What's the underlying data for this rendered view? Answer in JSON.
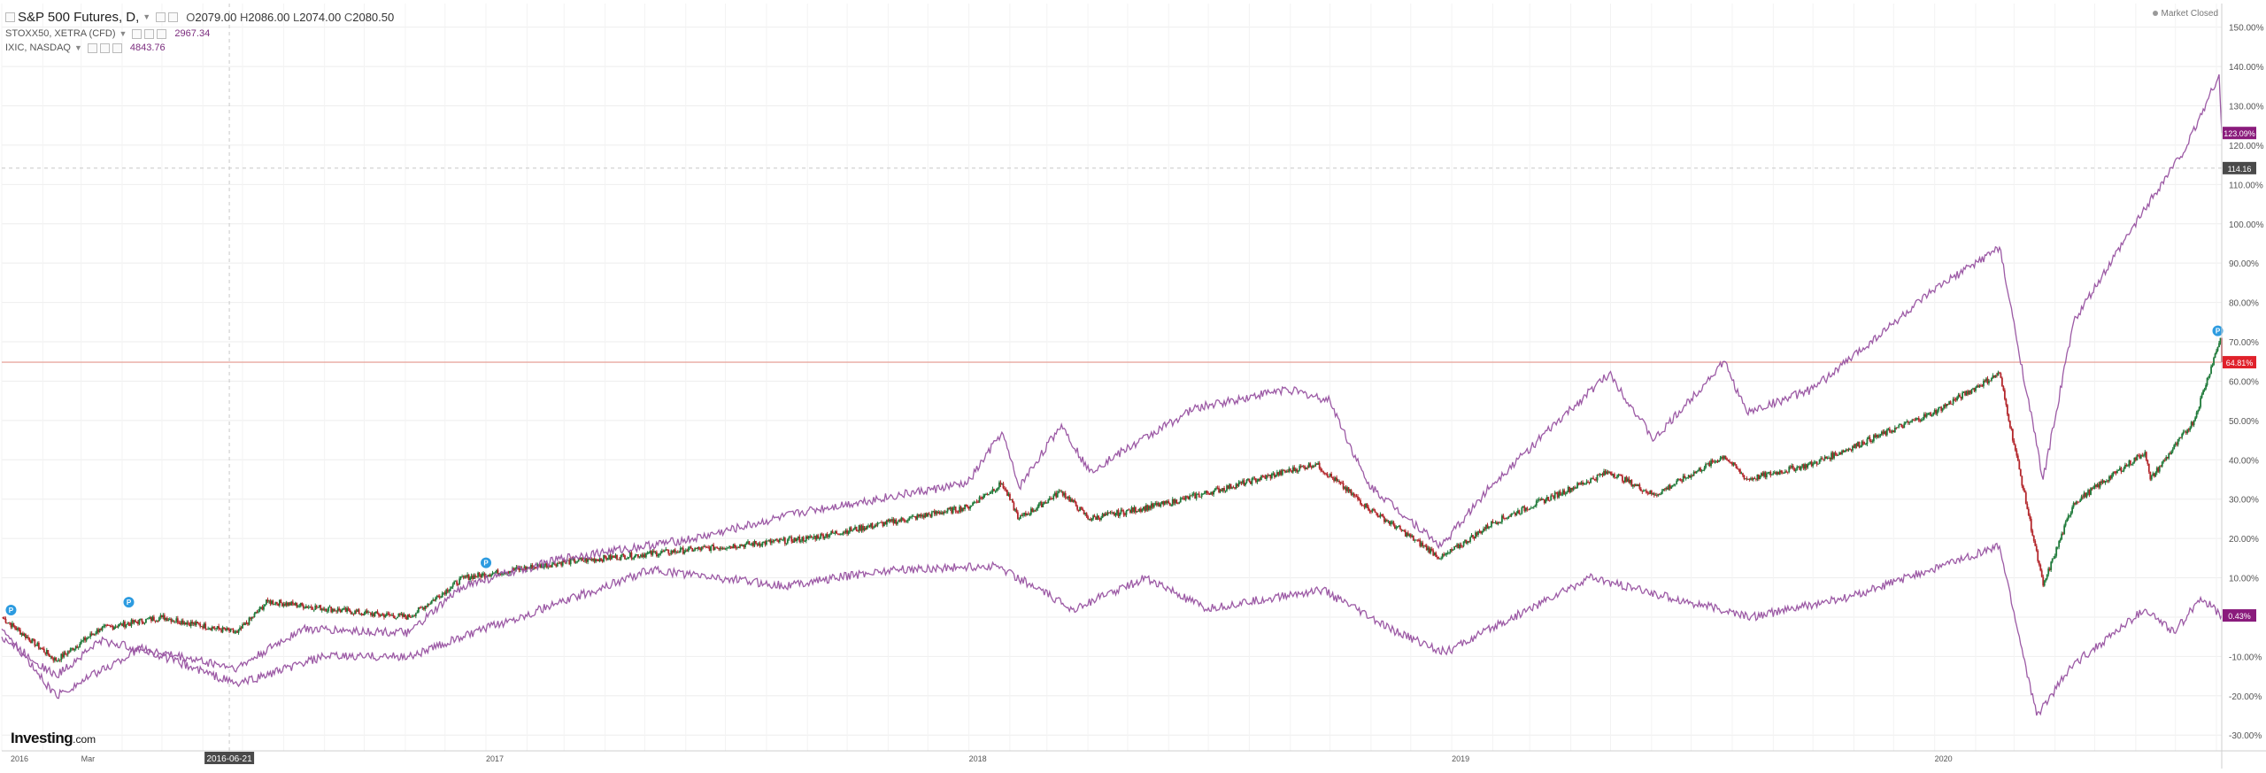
{
  "legend": {
    "main": {
      "symbol": "S&P 500 Futures, D,",
      "o_label": "O",
      "o": "2079.00",
      "h_label": "H",
      "h": "2086.00",
      "l_label": "L",
      "l": "2074.00",
      "c_label": "C",
      "c": "2080.50"
    },
    "stoxx": {
      "symbol": "STOXX50, XETRA (CFD)",
      "value": "2967.34"
    },
    "ixic": {
      "symbol": "IXIC, NASDAQ",
      "value": "4843.76"
    }
  },
  "market_status": "Market Closed",
  "branding": {
    "logo_bold": "Investing",
    "logo_small": ".com"
  },
  "colors": {
    "up": "#1f7a3a",
    "down": "#b3262b",
    "line": "#9c5aa5",
    "grid": "#eeeeee",
    "axis_text": "#555555",
    "hline": "#e8a9a0",
    "badge_red": "#e0212b",
    "badge_purple": "#8a1b7c",
    "badge_dark": "#4a4a4a",
    "marker": "#2c9be0"
  },
  "crosshair": {
    "date_label": "2016-06-21",
    "value_label": "114.16"
  },
  "chart_data": {
    "type": "line",
    "y_unit": "%",
    "ylim": [
      -34,
      156
    ],
    "y_ticks": [
      "150.00%",
      "140.00%",
      "130.00%",
      "120.00%",
      "110.00%",
      "100.00%",
      "90.00%",
      "80.00%",
      "70.00%",
      "60.00%",
      "50.00%",
      "40.00%",
      "30.00%",
      "20.00%",
      "10.00%",
      "0.00%",
      "-10.00%",
      "-20.00%",
      "-30.00%"
    ],
    "y_tick_values": [
      150,
      140,
      130,
      120,
      110,
      100,
      90,
      80,
      70,
      60,
      50,
      40,
      30,
      20,
      10,
      0,
      -10,
      -20,
      -30
    ],
    "x_ticks": [
      "2016",
      "Mar",
      "2017",
      "2018",
      "2019",
      "2020"
    ],
    "x_tick_dates": [
      "2016-01-01",
      "2016-03-01",
      "2017-01-01",
      "2018-01-01",
      "2019-01-01",
      "2020-01-01"
    ],
    "x_range": [
      "2016-01-01",
      "2020-08-05"
    ],
    "horizontal_line_value": 64.81,
    "last_value_badges": [
      {
        "series": "IXIC, NASDAQ",
        "label": "123.09%",
        "value": 123.09,
        "color": "#8a1b7c"
      },
      {
        "series": "S&P 500 Futures",
        "label": "64.81%",
        "value": 64.81,
        "color": "#e0212b"
      },
      {
        "series": "STOXX50, XETRA (CFD)",
        "label": "0.43%",
        "value": 0.43,
        "color": "#8a1b7c"
      }
    ],
    "crosshair_value": 114.16,
    "markers": [
      {
        "date": "2016-01-08",
        "value": 0
      },
      {
        "date": "2016-04-06",
        "value": 2
      },
      {
        "date": "2017-01-01",
        "value": 12
      },
      {
        "date": "2020-08-02",
        "value": 71
      }
    ],
    "series": [
      {
        "name": "S&P 500 Futures, D,",
        "style": "candles",
        "points": [
          [
            "2016-01-01",
            0
          ],
          [
            "2016-02-11",
            -11
          ],
          [
            "2016-03-15",
            -3
          ],
          [
            "2016-05-01",
            0
          ],
          [
            "2016-06-27",
            -4
          ],
          [
            "2016-07-20",
            4
          ],
          [
            "2016-10-01",
            1
          ],
          [
            "2016-11-04",
            0
          ],
          [
            "2016-12-15",
            10
          ],
          [
            "2017-03-01",
            14
          ],
          [
            "2017-06-01",
            17
          ],
          [
            "2017-09-01",
            20
          ],
          [
            "2017-12-31",
            28
          ],
          [
            "2018-01-26",
            34
          ],
          [
            "2018-02-08",
            25
          ],
          [
            "2018-03-12",
            32
          ],
          [
            "2018-04-02",
            25
          ],
          [
            "2018-06-01",
            29
          ],
          [
            "2018-09-20",
            39
          ],
          [
            "2018-10-29",
            28
          ],
          [
            "2018-12-24",
            15
          ],
          [
            "2019-02-01",
            24
          ],
          [
            "2019-04-30",
            37
          ],
          [
            "2019-06-03",
            31
          ],
          [
            "2019-07-26",
            41
          ],
          [
            "2019-08-12",
            35
          ],
          [
            "2019-10-01",
            39
          ],
          [
            "2019-12-31",
            52
          ],
          [
            "2020-02-19",
            62
          ],
          [
            "2020-03-23",
            8
          ],
          [
            "2020-04-15",
            29
          ],
          [
            "2020-06-08",
            42
          ],
          [
            "2020-06-12",
            35
          ],
          [
            "2020-07-15",
            50
          ],
          [
            "2020-08-04",
            71
          ],
          [
            "2020-08-05",
            64.81
          ]
        ]
      },
      {
        "name": "IXIC, NASDAQ",
        "style": "line",
        "points": [
          [
            "2016-01-01",
            -5
          ],
          [
            "2016-02-11",
            -15
          ],
          [
            "2016-03-15",
            -6
          ],
          [
            "2016-06-27",
            -13
          ],
          [
            "2016-08-15",
            -3
          ],
          [
            "2016-11-04",
            -4
          ],
          [
            "2016-12-15",
            8
          ],
          [
            "2017-03-01",
            15
          ],
          [
            "2017-06-08",
            20
          ],
          [
            "2017-09-01",
            27
          ],
          [
            "2017-12-31",
            34
          ],
          [
            "2018-01-26",
            47
          ],
          [
            "2018-02-08",
            33
          ],
          [
            "2018-03-12",
            49
          ],
          [
            "2018-04-02",
            37
          ],
          [
            "2018-06-20",
            53
          ],
          [
            "2018-08-29",
            58
          ],
          [
            "2018-10-01",
            55
          ],
          [
            "2018-10-29",
            34
          ],
          [
            "2018-12-24",
            18
          ],
          [
            "2019-02-01",
            34
          ],
          [
            "2019-04-30",
            62
          ],
          [
            "2019-06-03",
            45
          ],
          [
            "2019-07-26",
            65
          ],
          [
            "2019-08-12",
            52
          ],
          [
            "2019-10-01",
            58
          ],
          [
            "2019-12-31",
            83
          ],
          [
            "2020-02-19",
            94
          ],
          [
            "2020-03-23",
            35
          ],
          [
            "2020-04-15",
            75
          ],
          [
            "2020-06-10",
            105
          ],
          [
            "2020-07-10",
            120
          ],
          [
            "2020-08-03",
            138
          ],
          [
            "2020-08-05",
            123.09
          ]
        ]
      },
      {
        "name": "STOXX50, XETRA (CFD)",
        "style": "line",
        "points": [
          [
            "2016-01-01",
            -3
          ],
          [
            "2016-02-11",
            -20
          ],
          [
            "2016-04-15",
            -8
          ],
          [
            "2016-06-27",
            -17
          ],
          [
            "2016-09-01",
            -10
          ],
          [
            "2016-11-04",
            -10
          ],
          [
            "2016-12-31",
            -3
          ],
          [
            "2017-03-01",
            4
          ],
          [
            "2017-05-05",
            12
          ],
          [
            "2017-08-15",
            8
          ],
          [
            "2017-11-01",
            12
          ],
          [
            "2018-01-23",
            13
          ],
          [
            "2018-03-20",
            2
          ],
          [
            "2018-05-15",
            10
          ],
          [
            "2018-06-29",
            2
          ],
          [
            "2018-09-25",
            7
          ],
          [
            "2018-11-15",
            -3
          ],
          [
            "2018-12-27",
            -9
          ],
          [
            "2019-04-15",
            10
          ],
          [
            "2019-08-15",
            0
          ],
          [
            "2019-10-28",
            5
          ],
          [
            "2020-02-19",
            18
          ],
          [
            "2020-03-18",
            -25
          ],
          [
            "2020-04-15",
            -12
          ],
          [
            "2020-06-08",
            2
          ],
          [
            "2020-06-30",
            -4
          ],
          [
            "2020-07-20",
            5
          ],
          [
            "2020-08-05",
            0.43
          ]
        ]
      }
    ]
  }
}
